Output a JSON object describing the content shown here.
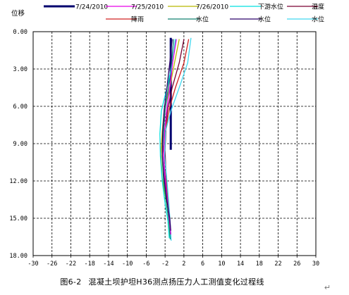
{
  "caption": {
    "figure_no": "图6-2",
    "title": "混凝土坝护坦H36测点扬压力人工测值变化过程线"
  },
  "return_mark": "↵",
  "chart_data": {
    "type": "line",
    "title": "",
    "xlabel": "",
    "ylabel": "位移",
    "xlim": [
      -30,
      30
    ],
    "ylim": [
      0,
      18
    ],
    "y_inverted": true,
    "grid": true,
    "x_ticks": [
      "-30",
      "-26",
      "-22",
      "-18",
      "-14",
      "-10",
      "-6",
      "-2",
      "2",
      "6",
      "10",
      "14",
      "18",
      "22",
      "26",
      "30"
    ],
    "y_ticks": [
      "0.00",
      "3.00",
      "6.00",
      "9.00",
      "12.00",
      "15.00",
      "18.00"
    ],
    "legend": [
      {
        "name": "7/24/2010",
        "color": "#00006e"
      },
      {
        "name": "7/25/2010",
        "color": "#e600e6"
      },
      {
        "name": "7/26/2010",
        "color": "#b8b800"
      },
      {
        "name": "下游水位",
        "color": "#00e0e0"
      },
      {
        "name": "温度",
        "color": "#7a0030"
      },
      {
        "name": "降雨",
        "color": "#d02020"
      },
      {
        "name": "水位",
        "color": "#108070"
      },
      {
        "name": "水位",
        "color": "#2a006a"
      },
      {
        "name": "水位",
        "color": "#40d8f0"
      }
    ],
    "series": [
      {
        "color": "#00006e",
        "width": 3,
        "points": [
          [
            -0.8,
            0.5
          ],
          [
            -0.8,
            9.5
          ]
        ]
      },
      {
        "color": "#7a0030",
        "width": 1.3,
        "points": [
          [
            2,
            0.6
          ],
          [
            1,
            2.5
          ],
          [
            -0.5,
            4.5
          ],
          [
            -1.5,
            6.3
          ],
          [
            -1.8,
            7.8
          ],
          [
            -2.0,
            9.5
          ],
          [
            -1.8,
            11.5
          ],
          [
            -1.5,
            13
          ],
          [
            -1.2,
            14.6
          ],
          [
            -0.8,
            16.3
          ]
        ]
      },
      {
        "color": "#d02020",
        "width": 1.3,
        "points": [
          [
            3,
            0.6
          ],
          [
            2,
            2.5
          ],
          [
            0.2,
            4.5
          ],
          [
            -1.2,
            6.3
          ],
          [
            -1.8,
            7.8
          ],
          [
            -2.4,
            9.5
          ],
          [
            -2.0,
            11.5
          ],
          [
            -1.5,
            13.2
          ],
          [
            -1.1,
            14.8
          ],
          [
            -0.9,
            16.2
          ]
        ]
      },
      {
        "color": "#b8b800",
        "width": 1.3,
        "points": [
          [
            1,
            0.6
          ],
          [
            0,
            2.5
          ],
          [
            -1,
            4.5
          ],
          [
            -2.2,
            6.4
          ],
          [
            -2.6,
            8.0
          ],
          [
            -2.9,
            9.8
          ],
          [
            -2.6,
            11.8
          ],
          [
            -1.8,
            13.6
          ],
          [
            -1.2,
            15.2
          ],
          [
            -1.0,
            16.5
          ]
        ]
      },
      {
        "color": "#108070",
        "width": 1.3,
        "points": [
          [
            -0.2,
            0.6
          ],
          [
            -0.6,
            2.5
          ],
          [
            -1.3,
            4.5
          ],
          [
            -2.0,
            6.3
          ],
          [
            -2.3,
            8.0
          ],
          [
            -2.6,
            10.0
          ],
          [
            -2.3,
            12.0
          ],
          [
            -1.7,
            13.8
          ],
          [
            -1.1,
            15.4
          ],
          [
            -0.9,
            16.7
          ]
        ]
      },
      {
        "color": "#00e0e0",
        "width": 1.3,
        "points": [
          [
            0.2,
            0.6
          ],
          [
            -0.4,
            2.5
          ],
          [
            -1.6,
            4.5
          ],
          [
            -2.8,
            6.4
          ],
          [
            -3.1,
            8.2
          ],
          [
            -3.0,
            10.0
          ],
          [
            -2.6,
            12.0
          ],
          [
            -2.0,
            13.8
          ],
          [
            -1.4,
            15.2
          ],
          [
            -1.1,
            16.6
          ]
        ]
      },
      {
        "color": "#40d8f0",
        "width": 1.3,
        "points": [
          [
            3.5,
            0.5
          ],
          [
            2.8,
            2.5
          ],
          [
            1.0,
            4.5
          ],
          [
            -0.8,
            6.4
          ],
          [
            -1.9,
            8.0
          ],
          [
            -2.1,
            10.0
          ],
          [
            -1.6,
            12.0
          ],
          [
            -1.2,
            13.8
          ],
          [
            -0.9,
            15.5
          ],
          [
            -0.7,
            16.8
          ]
        ]
      },
      {
        "color": "#e600e6",
        "width": 1.3,
        "points": [
          [
            0.4,
            0.6
          ],
          [
            -0.4,
            2.5
          ],
          [
            -1.0,
            4.5
          ],
          [
            -1.7,
            6.4
          ],
          [
            -2.1,
            8.0
          ],
          [
            -2.3,
            9.8
          ],
          [
            -2.0,
            11.8
          ],
          [
            -1.5,
            13.6
          ],
          [
            -1.0,
            15.4
          ],
          [
            -0.8,
            16.3
          ]
        ]
      },
      {
        "color": "#2a006a",
        "width": 1.3,
        "points": [
          [
            -0.5,
            0.6
          ],
          [
            -1.0,
            2.5
          ],
          [
            -1.6,
            4.5
          ],
          [
            -2.2,
            6.3
          ],
          [
            -2.5,
            8.0
          ],
          [
            -2.6,
            9.8
          ],
          [
            -2.2,
            11.8
          ],
          [
            -1.6,
            13.6
          ],
          [
            -1.0,
            15.0
          ],
          [
            -0.8,
            16.0
          ]
        ]
      }
    ]
  }
}
